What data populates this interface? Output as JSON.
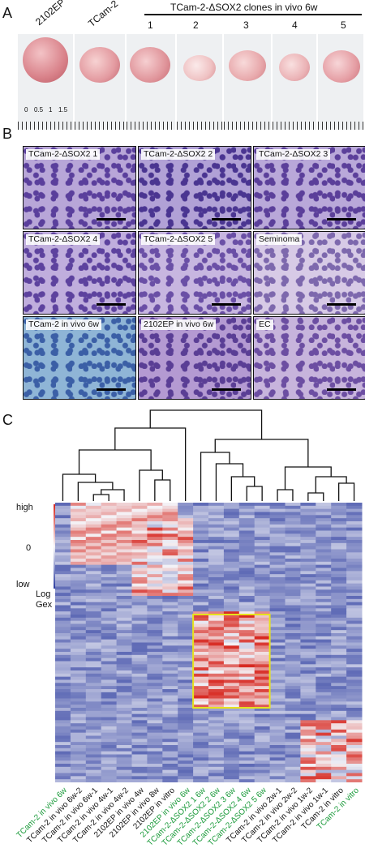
{
  "panels": {
    "a": "A",
    "b": "B",
    "c": "C"
  },
  "panel_a": {
    "header": "TCam-2-ΔSOX2 clones in vivo 6w",
    "labels": [
      "2102EP",
      "TCam-2",
      "1",
      "2",
      "3",
      "4",
      "5"
    ],
    "ruler_labels": [
      "0",
      "0.5",
      "1",
      "1.5"
    ]
  },
  "panel_b": {
    "tiles": [
      {
        "label": "TCam-2-ΔSOX2 1"
      },
      {
        "label": "TCam-2-ΔSOX2 2"
      },
      {
        "label": "TCam-2-ΔSOX2 3"
      },
      {
        "label": "TCam-2-ΔSOX2 4"
      },
      {
        "label": "TCam-2-ΔSOX2 5"
      },
      {
        "label": "Seminoma"
      },
      {
        "label": "TCam-2 in vivo 6w"
      },
      {
        "label": "2102EP in vivo 6w"
      },
      {
        "label": "EC"
      }
    ]
  },
  "panel_c": {
    "legend": {
      "high": "high",
      "zero": "0",
      "low": "low",
      "title_line1": "Log",
      "title_line2": "Gex"
    },
    "columns": [
      {
        "label": "TCam-2 in vivo 6w",
        "color": "#1a9a3a"
      },
      {
        "label": "TCam-2 in vivo 6w-2",
        "color": "#111111"
      },
      {
        "label": "TCam-2 in vivo 6w-1",
        "color": "#111111"
      },
      {
        "label": "TCam-2 in vivo 4w-1",
        "color": "#111111"
      },
      {
        "label": "TCam-2 in vivo 4w-2",
        "color": "#111111"
      },
      {
        "label": "2102EP in vivo 4w",
        "color": "#111111"
      },
      {
        "label": "2102EP in vivo 8w",
        "color": "#111111"
      },
      {
        "label": "2102EP in vitro",
        "color": "#111111"
      },
      {
        "label": "2102EP in vivo 6w",
        "color": "#1a9a3a"
      },
      {
        "label": "TCam-2-ΔSOX2 1 6w",
        "color": "#1a9a3a"
      },
      {
        "label": "TCam-2-ΔSOX2 2 6w",
        "color": "#1a9a3a"
      },
      {
        "label": "TCam-2-ΔSOX2 3 6w",
        "color": "#1a9a3a"
      },
      {
        "label": "TCam-2-ΔSOX2 4 6w",
        "color": "#1a9a3a"
      },
      {
        "label": "TCam-2-ΔSOX2 5 6w",
        "color": "#1a9a3a"
      },
      {
        "label": "TCam-2 in vivo 2w-1",
        "color": "#111111"
      },
      {
        "label": "TCam-2 in vivo 2w-2",
        "color": "#111111"
      },
      {
        "label": "TCam-2 in vivo 1w-2",
        "color": "#111111"
      },
      {
        "label": "TCam-2 in vivo 1w-1",
        "color": "#111111"
      },
      {
        "label": "TCam-2 in vitro",
        "color": "#111111"
      },
      {
        "label": "TCam-2 in vitro",
        "color": "#1a9a3a"
      }
    ],
    "colors": {
      "high": "#d7261e",
      "mid": "#f4f4f8",
      "low": "#2b3b9f",
      "highlight": "#e6e21c"
    }
  }
}
